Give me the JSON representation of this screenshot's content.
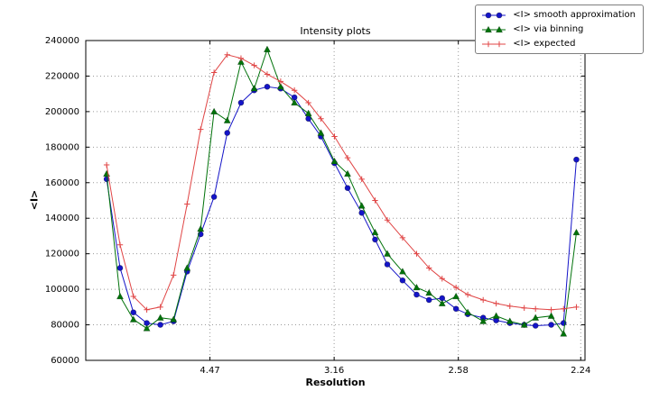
{
  "chart_data": {
    "type": "line",
    "title": "Intensity plots",
    "xlabel": "Resolution",
    "ylabel": "<I>",
    "x_axis_scale": "linear in 1/d^2 (resolution decreasing to the right)",
    "grid": true,
    "legend_position": "upper right, outside top of axes",
    "ylim": [
      60000,
      240000
    ],
    "y_ticks": [
      60000,
      80000,
      100000,
      120000,
      140000,
      160000,
      180000,
      200000,
      220000,
      240000
    ],
    "x_ticks": [
      {
        "label": "4.47",
        "invd2": 0.05
      },
      {
        "label": "3.16",
        "invd2": 0.1
      },
      {
        "label": "2.58",
        "invd2": 0.15
      },
      {
        "label": "2.24",
        "invd2": 0.19928
      }
    ],
    "x_resolution": [
      10.91,
      8.51,
      7.22,
      6.38,
      5.77,
      5.32,
      4.95,
      4.65,
      4.4,
      4.19,
      4.0,
      3.84,
      3.7,
      3.57,
      3.45,
      3.34,
      3.25,
      3.16,
      3.08,
      3.0,
      2.93,
      2.87,
      2.8,
      2.74,
      2.69,
      2.64,
      2.59,
      2.55,
      2.5,
      2.46,
      2.42,
      2.38,
      2.35,
      2.31,
      2.28,
      2.25
    ],
    "series": [
      {
        "name": "<I> smooth approximation",
        "color": "#1414c8",
        "marker": "circle",
        "values": [
          162000,
          112000,
          87000,
          81000,
          80000,
          82000,
          110000,
          131000,
          152000,
          188000,
          205000,
          212000,
          214000,
          213000,
          208000,
          196000,
          186000,
          171000,
          157000,
          143000,
          128000,
          114000,
          105000,
          97000,
          94000,
          95000,
          89000,
          86000,
          84000,
          82500,
          81000,
          80000,
          79500,
          80000,
          81000,
          173000
        ]
      },
      {
        "name": "<I> via binning",
        "color": "#00720a",
        "marker": "triangle",
        "values": [
          165000,
          96000,
          83000,
          78000,
          84000,
          83000,
          112000,
          134000,
          200000,
          195000,
          228000,
          213000,
          235000,
          214000,
          205000,
          199000,
          188000,
          172000,
          165000,
          147000,
          132000,
          120000,
          110000,
          101000,
          98000,
          92000,
          96000,
          87000,
          82000,
          85000,
          82000,
          80000,
          84000,
          85000,
          75000,
          132000
        ]
      },
      {
        "name": "<I> expected",
        "color": "#e04545",
        "marker": "plus",
        "values": [
          170000,
          125000,
          96000,
          88500,
          90000,
          108000,
          148000,
          190000,
          222000,
          232000,
          230000,
          226000,
          221000,
          217000,
          212000,
          205000,
          196000,
          186000,
          174000,
          162000,
          150000,
          139000,
          129000,
          120000,
          112000,
          106000,
          101000,
          97000,
          94000,
          92000,
          90500,
          89500,
          89000,
          88500,
          89000,
          90000
        ]
      }
    ]
  }
}
